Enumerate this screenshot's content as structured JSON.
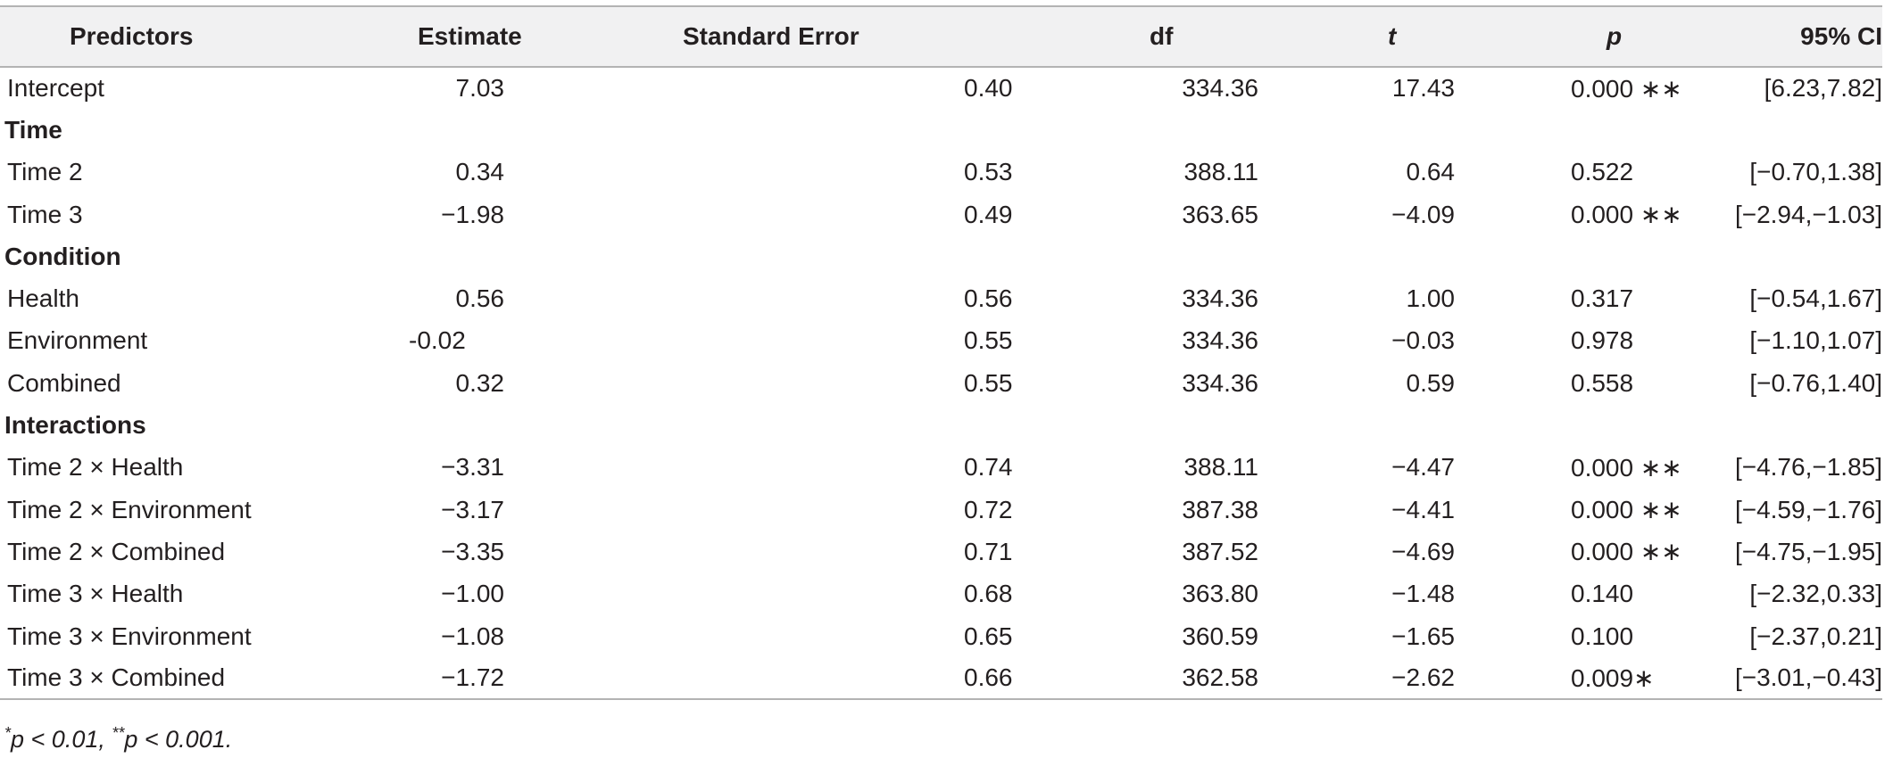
{
  "table": {
    "headers": {
      "predictors": "Predictors",
      "estimate": "Estimate",
      "se": "Standard Error",
      "df": "df",
      "t": "t",
      "p": "p",
      "ci": "95% CI"
    },
    "rows": [
      {
        "kind": "data",
        "predictor": "Intercept",
        "estimate": "7.03",
        "se": "0.40",
        "df": "334.36",
        "t": "17.43",
        "p": "0.000 ∗∗",
        "ci": "[6.23,7.82]"
      },
      {
        "kind": "group",
        "label": "Time"
      },
      {
        "kind": "data",
        "predictor": "Time 2",
        "estimate": "0.34",
        "se": "0.53",
        "df": "388.11",
        "t": "0.64",
        "p": "0.522",
        "ci": "[−0.70,1.38]"
      },
      {
        "kind": "data",
        "predictor": "Time 3",
        "estimate": "−1.98",
        "se": "0.49",
        "df": "363.65",
        "t": "−4.09",
        "p": "0.000 ∗∗",
        "ci": "[−2.94,−1.03]"
      },
      {
        "kind": "group",
        "label": "Condition"
      },
      {
        "kind": "data",
        "predictor": "Health",
        "estimate": "0.56",
        "se": "0.56",
        "df": "334.36",
        "t": "1.00",
        "p": "0.317",
        "ci": "[−0.54,1.67]"
      },
      {
        "kind": "data",
        "predictor": "Environment",
        "estimate": "-0.02",
        "estimate_align": "left",
        "se": "0.55",
        "df": "334.36",
        "t": "−0.03",
        "p": "0.978",
        "ci": "[−1.10,1.07]"
      },
      {
        "kind": "data",
        "predictor": "Combined",
        "estimate": "0.32",
        "se": "0.55",
        "df": "334.36",
        "t": "0.59",
        "p": "0.558",
        "ci": "[−0.76,1.40]"
      },
      {
        "kind": "group",
        "label": "Interactions"
      },
      {
        "kind": "data",
        "predictor": "Time 2 × Health",
        "estimate": "−3.31",
        "se": "0.74",
        "df": "388.11",
        "t": "−4.47",
        "p": "0.000 ∗∗",
        "ci": "[−4.76,−1.85]"
      },
      {
        "kind": "data",
        "predictor": "Time 2 × Environment",
        "estimate": "−3.17",
        "se": "0.72",
        "df": "387.38",
        "t": "−4.41",
        "p": "0.000 ∗∗",
        "ci": "[−4.59,−1.76]"
      },
      {
        "kind": "data",
        "predictor": "Time 2 × Combined",
        "estimate": "−3.35",
        "se": "0.71",
        "df": "387.52",
        "t": "−4.69",
        "p": "0.000 ∗∗",
        "ci": "[−4.75,−1.95]"
      },
      {
        "kind": "data",
        "predictor": "Time 3 × Health",
        "estimate": "−1.00",
        "se": "0.68",
        "df": "363.80",
        "t": "−1.48",
        "p": "0.140",
        "ci": "[−2.32,0.33]"
      },
      {
        "kind": "data",
        "predictor": "Time 3 × Environment",
        "estimate": "−1.08",
        "se": "0.65",
        "df": "360.59",
        "t": "−1.65",
        "p": "0.100",
        "ci": "[−2.37,0.21]"
      },
      {
        "kind": "data",
        "predictor": "Time 3 × Combined",
        "estimate": "−1.72",
        "se": "0.66",
        "df": "362.58",
        "t": "−2.62",
        "p": "0.009∗",
        "ci": "[−3.01,−0.43]"
      }
    ]
  },
  "footnote": {
    "star1": "*",
    "text1": "p < 0.01, ",
    "star2": "**",
    "text2": "p < 0.001."
  }
}
